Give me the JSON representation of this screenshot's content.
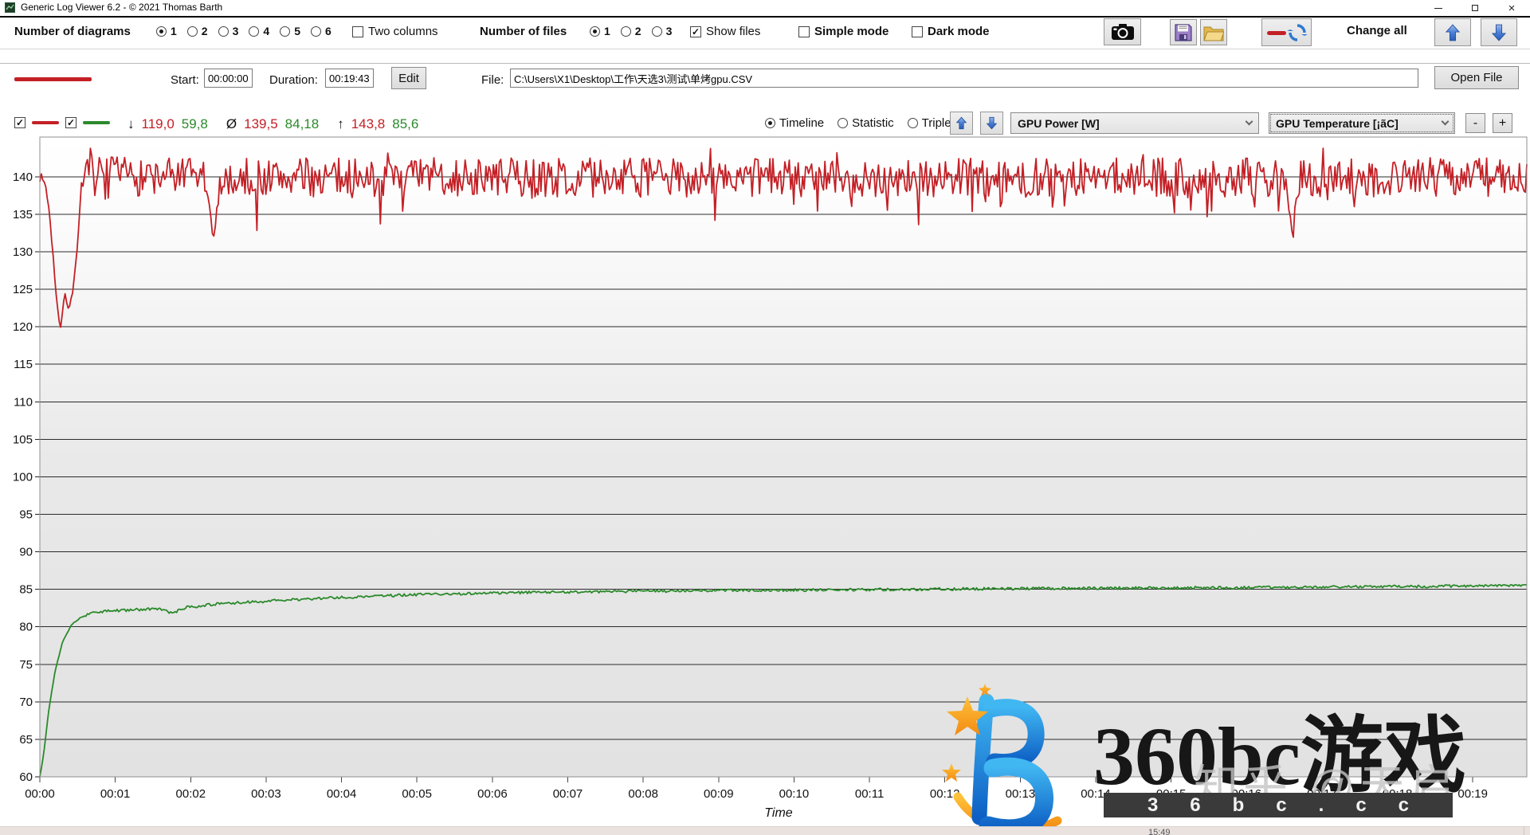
{
  "window": {
    "title": "Generic Log Viewer 6.2 - © 2021 Thomas Barth"
  },
  "toolbar": {
    "diagrams_label": "Number of diagrams",
    "diagram_options": [
      "1",
      "2",
      "3",
      "4",
      "5",
      "6"
    ],
    "diagram_selected": "1",
    "two_columns_label": "Two columns",
    "two_columns_checked": false,
    "files_label": "Number of files",
    "file_options": [
      "1",
      "2",
      "3"
    ],
    "files_selected": "1",
    "show_files_label": "Show files",
    "show_files_checked": true,
    "simple_mode_label": "Simple mode",
    "simple_mode_checked": false,
    "dark_mode_label": "Dark mode",
    "dark_mode_checked": false,
    "change_all_label": "Change all"
  },
  "file_row": {
    "start_label": "Start:",
    "start_value": "00:00:00",
    "duration_label": "Duration:",
    "duration_value": "00:19:43",
    "edit_label": "Edit",
    "file_label": "File:",
    "file_path": "C:\\Users\\X1\\Desktop\\工作\\天选3\\测试\\单烤gpu.CSV",
    "open_file_label": "Open File"
  },
  "legend": {
    "series1_checked": true,
    "series2_checked": true,
    "stats": {
      "min_symbol": "↓",
      "min_power": "119,0",
      "min_temp": "59,8",
      "avg_symbol": "Ø",
      "avg_power": "139,5",
      "avg_temp": "84,18",
      "max_symbol": "↑",
      "max_power": "143,8",
      "max_temp": "85,6"
    },
    "view_options": [
      "Timeline",
      "Statistic",
      "Triple"
    ],
    "view_selected": "Timeline",
    "dropdown1": "GPU Power [W]",
    "dropdown2": "GPU Temperature [¡ãC]",
    "zoom_out_label": "-",
    "zoom_in_label": "+"
  },
  "chart_data": {
    "type": "line",
    "title": "",
    "xlabel": "Time",
    "x_minutes_max": 19.716,
    "x_tick_labels": [
      "00:00",
      "00:01",
      "00:02",
      "00:03",
      "00:04",
      "00:05",
      "00:06",
      "00:07",
      "00:08",
      "00:09",
      "00:10",
      "00:11",
      "00:12",
      "00:13",
      "00:14",
      "00:15",
      "00:16",
      "00:17",
      "00:18",
      "00:19"
    ],
    "y_min": 60,
    "y_max_visible": 145.3,
    "y_ticks": [
      60,
      65,
      70,
      75,
      80,
      85,
      90,
      95,
      100,
      105,
      110,
      115,
      120,
      125,
      130,
      135,
      140
    ],
    "grid": true,
    "series": [
      {
        "name": "GPU Power [W]",
        "color": "#c32026",
        "stats": {
          "min": 119.0,
          "avg": 139.5,
          "max": 143.8
        },
        "anchors": [
          [
            0,
            140
          ],
          [
            0.07,
            139.2
          ],
          [
            0.13,
            135
          ],
          [
            0.2,
            126
          ],
          [
            0.27,
            119.3
          ],
          [
            0.33,
            124.5
          ],
          [
            0.38,
            122.3
          ],
          [
            0.44,
            124.8
          ],
          [
            0.5,
            131
          ],
          [
            0.55,
            139
          ],
          [
            0.62,
            140.1
          ],
          [
            2.2,
            139.9
          ],
          [
            2.3,
            131.3
          ],
          [
            2.4,
            139.9
          ],
          [
            16.5,
            139.9
          ],
          [
            16.6,
            133.2
          ],
          [
            16.7,
            139.9
          ],
          [
            19.716,
            140
          ]
        ],
        "noise_amp": 2.6,
        "down_spike_chance": 0.05,
        "down_spike_size": 3.2,
        "up_spike_chance": 0.04,
        "up_spike_size": 2.2
      },
      {
        "name": "GPU Temperature [¡ãC]",
        "color": "#2b8a2b",
        "stats": {
          "min": 59.8,
          "avg": 84.18,
          "max": 85.6
        },
        "anchors": [
          [
            0,
            60
          ],
          [
            0.05,
            63
          ],
          [
            0.12,
            69
          ],
          [
            0.2,
            74
          ],
          [
            0.3,
            78
          ],
          [
            0.42,
            80.3
          ],
          [
            0.55,
            81.3
          ],
          [
            0.7,
            81.9
          ],
          [
            0.9,
            82.1
          ],
          [
            1.3,
            82.3
          ],
          [
            1.6,
            82.4
          ],
          [
            1.75,
            81.8
          ],
          [
            1.95,
            82.6
          ],
          [
            2.3,
            83.0
          ],
          [
            2.8,
            83.3
          ],
          [
            3.5,
            83.7
          ],
          [
            4.2,
            84.0
          ],
          [
            5,
            84.3
          ],
          [
            6,
            84.5
          ],
          [
            7,
            84.65
          ],
          [
            8,
            84.75
          ],
          [
            9,
            84.85
          ],
          [
            10,
            84.9
          ],
          [
            11.5,
            85.0
          ],
          [
            13,
            85.1
          ],
          [
            15,
            85.2
          ],
          [
            17,
            85.3
          ],
          [
            18.5,
            85.4
          ],
          [
            19.3,
            85.5
          ],
          [
            19.716,
            85.6
          ]
        ],
        "noise_amp": 0.18,
        "down_spike_chance": 0,
        "down_spike_size": 0,
        "up_spike_chance": 0,
        "up_spike_size": 0
      }
    ]
  },
  "watermark": {
    "brand_text": "360bc游戏",
    "bar_text": "36bc.cc",
    "ghost_text": "知乎 @天启"
  },
  "taskbar": {
    "clock": "15:49"
  },
  "colors": {
    "power_red": "#c32026",
    "temp_green": "#2b8a2b",
    "arrow_blue": "#3f76cf",
    "grid_line": "#2b2b2b",
    "watermark_bar_bg": "#3a3a3a",
    "taskbar_bg": "#eae2df"
  }
}
